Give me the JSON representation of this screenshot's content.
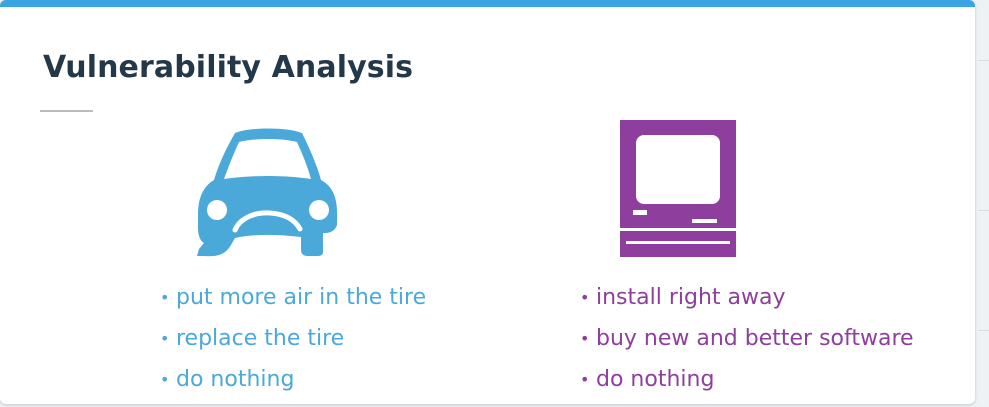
{
  "slide": {
    "title": "Vulnerability Analysis",
    "accent_color": "#3aa3e3"
  },
  "left_panel": {
    "icon": "car-flat-tire-icon",
    "color": "#4ba9d9",
    "items": [
      "put more air in the tire",
      "replace the tire",
      "do nothing"
    ]
  },
  "right_panel": {
    "icon": "computer-icon",
    "color": "#8e3f9e",
    "items": [
      "install right away",
      "buy new and better software",
      "do nothing"
    ]
  }
}
